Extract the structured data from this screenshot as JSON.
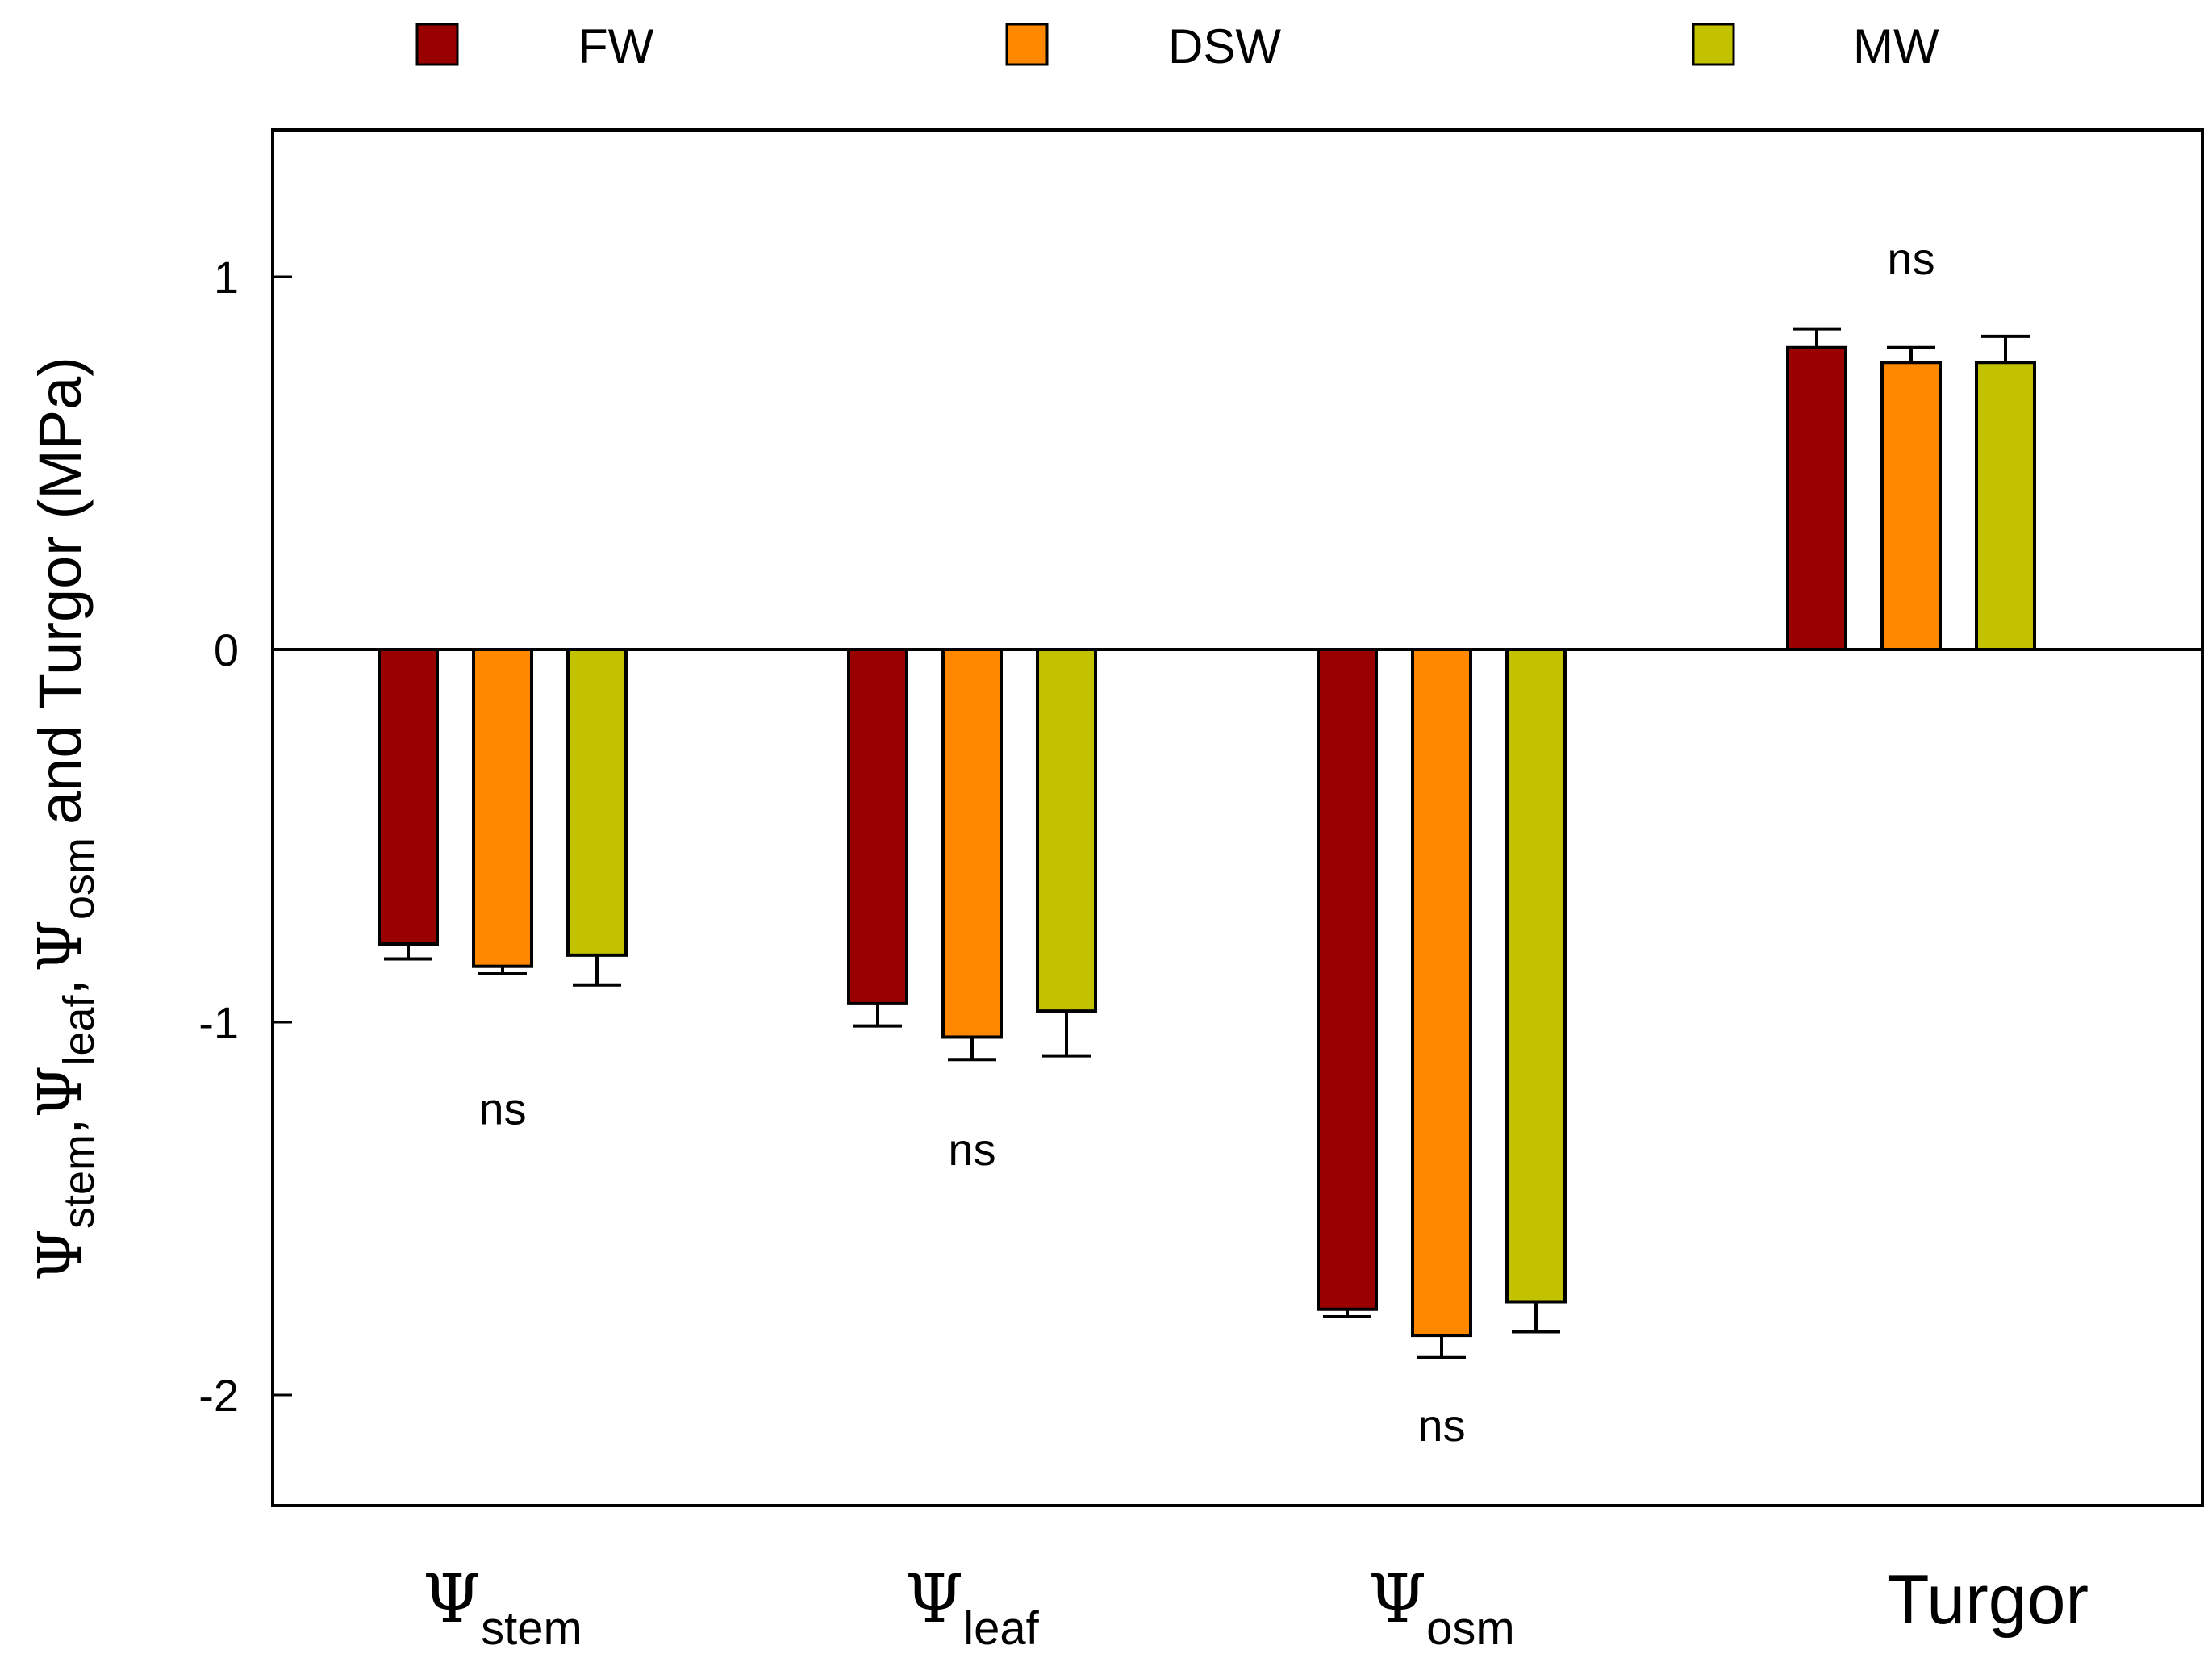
{
  "chart_data": {
    "type": "bar",
    "title": "",
    "xlabel": "",
    "ylabel": {
      "psi": "Ψ",
      "stem_sub": "stem",
      "leaf_sub": "leaf",
      "osm_sub": "osm",
      "comma": ",",
      "tail": "and Turgor (MPa)"
    },
    "ylim": [
      -2.3,
      1.4
    ],
    "yticks": [
      1,
      0,
      -1,
      -2
    ],
    "ytick_labels": [
      "1",
      "0",
      "-1",
      "-2"
    ],
    "categories": [
      {
        "symbol": "Ψ",
        "sub": "stem",
        "label": ""
      },
      {
        "symbol": "Ψ",
        "sub": "leaf",
        "label": ""
      },
      {
        "symbol": "Ψ",
        "sub": "osm",
        "label": ""
      },
      {
        "symbol": "",
        "sub": "",
        "label": "Turgor"
      }
    ],
    "series": [
      {
        "name": "FW",
        "color": "#990000",
        "values": [
          -0.79,
          -0.95,
          -1.77,
          0.81
        ],
        "errors": [
          0.04,
          0.06,
          0.02,
          0.05
        ]
      },
      {
        "name": "DSW",
        "color": "#FF8800",
        "values": [
          -0.85,
          -1.04,
          -1.84,
          0.77
        ],
        "errors": [
          0.02,
          0.06,
          0.06,
          0.04
        ]
      },
      {
        "name": "MW",
        "color": "#C2C200",
        "values": [
          -0.82,
          -0.97,
          -1.75,
          0.77
        ],
        "errors": [
          0.08,
          0.12,
          0.08,
          0.07
        ]
      }
    ],
    "annotations": [
      {
        "text": "ns",
        "category": 0,
        "y": -1.23
      },
      {
        "text": "ns",
        "category": 1,
        "y": -1.34
      },
      {
        "text": "ns",
        "category": 2,
        "y": -2.08
      },
      {
        "text": "ns",
        "category": 3,
        "y": 1.05
      }
    ],
    "legend_position": "top"
  }
}
